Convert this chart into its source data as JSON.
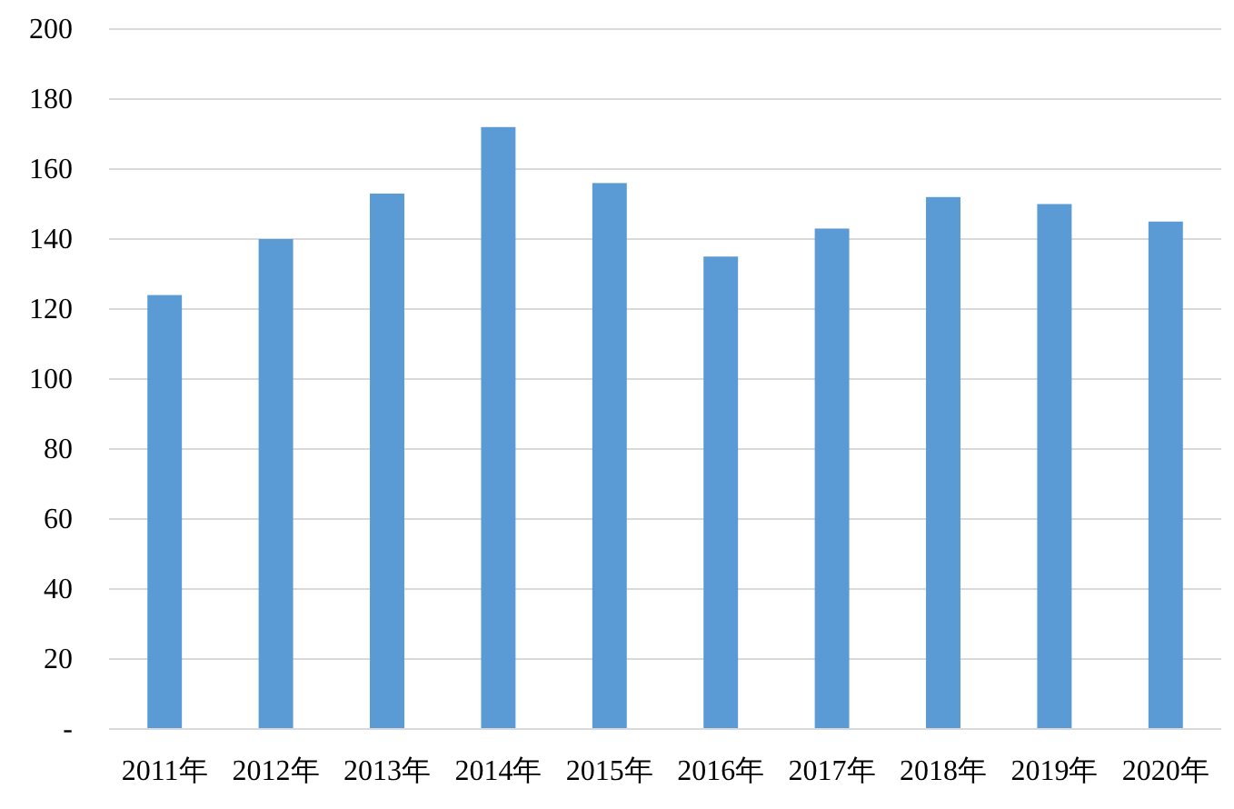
{
  "chart_data": {
    "type": "bar",
    "categories": [
      "2011年",
      "2012年",
      "2013年",
      "2014年",
      "2015年",
      "2016年",
      "2017年",
      "2018年",
      "2019年",
      "2020年"
    ],
    "values": [
      124,
      140,
      153,
      172,
      156,
      135,
      143,
      152,
      150,
      145
    ],
    "color": "#5b9bd5",
    "ylim": [
      0,
      200
    ],
    "yticks": [
      {
        "value": 0,
        "label": "-"
      },
      20,
      40,
      60,
      80,
      100,
      120,
      140,
      160,
      180,
      200
    ],
    "grid": "y"
  }
}
